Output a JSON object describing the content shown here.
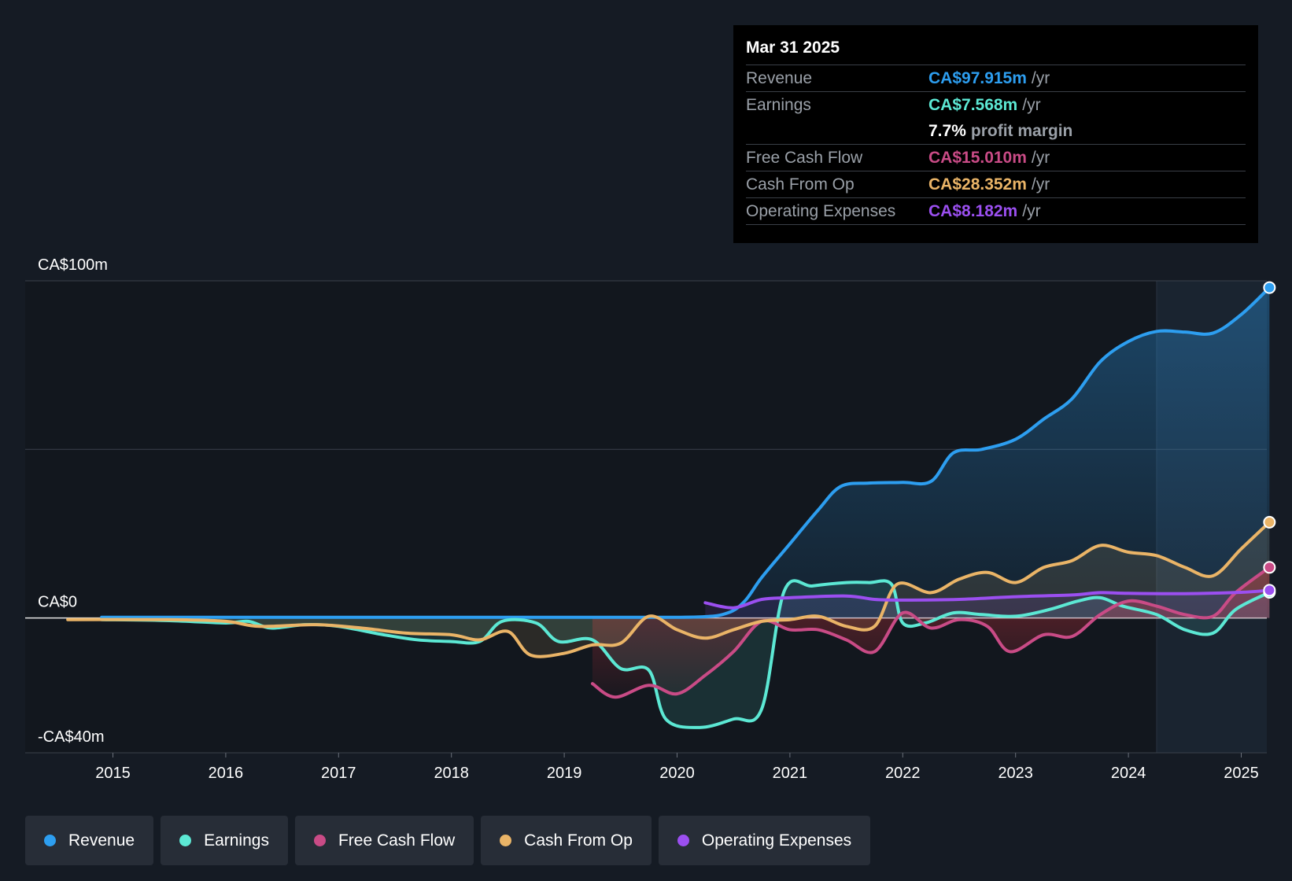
{
  "chart_data": {
    "type": "line",
    "ylim": [
      -40,
      100
    ],
    "xlim": [
      2014.6,
      2025.25
    ],
    "y_labels": [
      {
        "value": 100,
        "label": "CA$100m"
      },
      {
        "value": 0,
        "label": "CA$0"
      },
      {
        "value": -40,
        "label": "-CA$40m"
      }
    ],
    "gridlines": [
      100,
      50,
      0,
      -40
    ],
    "x_ticks": [
      "2015",
      "2016",
      "2017",
      "2018",
      "2019",
      "2020",
      "2021",
      "2022",
      "2023",
      "2024",
      "2025"
    ],
    "forecast_start": 2024.25,
    "series": [
      {
        "name": "Revenue",
        "color": "#2d9ef0",
        "fill": true,
        "points": [
          [
            2014.9,
            0.2
          ],
          [
            2015.5,
            0.2
          ],
          [
            2016.5,
            0.2
          ],
          [
            2017.5,
            0.2
          ],
          [
            2018.5,
            0.2
          ],
          [
            2019.5,
            0.2
          ],
          [
            2020.2,
            0.3
          ],
          [
            2020.45,
            1.5
          ],
          [
            2020.6,
            5
          ],
          [
            2020.75,
            12
          ],
          [
            2021.0,
            22
          ],
          [
            2021.25,
            32
          ],
          [
            2021.45,
            39
          ],
          [
            2021.7,
            40
          ],
          [
            2022.0,
            40.2
          ],
          [
            2022.25,
            40.5
          ],
          [
            2022.45,
            49
          ],
          [
            2022.7,
            50
          ],
          [
            2023.0,
            53
          ],
          [
            2023.25,
            59
          ],
          [
            2023.5,
            65
          ],
          [
            2023.75,
            76
          ],
          [
            2024.0,
            82
          ],
          [
            2024.25,
            85
          ],
          [
            2024.5,
            84.8
          ],
          [
            2024.75,
            84.5
          ],
          [
            2025.0,
            90
          ],
          [
            2025.25,
            98
          ]
        ]
      },
      {
        "name": "Earnings",
        "color": "#5ce8d4",
        "fill": true,
        "points": [
          [
            2014.9,
            -0.5
          ],
          [
            2015.5,
            -0.8
          ],
          [
            2016.0,
            -1.5
          ],
          [
            2016.2,
            -1.0
          ],
          [
            2016.4,
            -3.0
          ],
          [
            2016.7,
            -2.0
          ],
          [
            2017.0,
            -2.5
          ],
          [
            2017.4,
            -5.0
          ],
          [
            2017.7,
            -6.5
          ],
          [
            2018.0,
            -7.0
          ],
          [
            2018.25,
            -7.0
          ],
          [
            2018.45,
            -1.0
          ],
          [
            2018.75,
            -1.5
          ],
          [
            2018.95,
            -7.0
          ],
          [
            2019.25,
            -6.5
          ],
          [
            2019.5,
            -15.0
          ],
          [
            2019.75,
            -15.5
          ],
          [
            2019.9,
            -30.0
          ],
          [
            2020.2,
            -32.5
          ],
          [
            2020.5,
            -30.0
          ],
          [
            2020.75,
            -27.0
          ],
          [
            2020.95,
            8.0
          ],
          [
            2021.2,
            9.5
          ],
          [
            2021.5,
            10.5
          ],
          [
            2021.7,
            10.5
          ],
          [
            2021.9,
            10.0
          ],
          [
            2022.0,
            -1.5
          ],
          [
            2022.2,
            -1.5
          ],
          [
            2022.45,
            1.5
          ],
          [
            2022.7,
            1.0
          ],
          [
            2023.0,
            0.5
          ],
          [
            2023.3,
            2.5
          ],
          [
            2023.55,
            5.0
          ],
          [
            2023.75,
            6.0
          ],
          [
            2023.95,
            3.5
          ],
          [
            2024.25,
            1.0
          ],
          [
            2024.5,
            -3.5
          ],
          [
            2024.75,
            -4.5
          ],
          [
            2024.95,
            2.5
          ],
          [
            2025.25,
            7.6
          ]
        ]
      },
      {
        "name": "Free Cash Flow",
        "color": "#c94b86",
        "fill": true,
        "points": [
          [
            2019.25,
            -19.5
          ],
          [
            2019.45,
            -23.5
          ],
          [
            2019.75,
            -20.0
          ],
          [
            2020.0,
            -22.5
          ],
          [
            2020.25,
            -17.0
          ],
          [
            2020.5,
            -10.0
          ],
          [
            2020.75,
            -1.0
          ],
          [
            2021.0,
            -3.5
          ],
          [
            2021.25,
            -3.5
          ],
          [
            2021.5,
            -6.5
          ],
          [
            2021.75,
            -10.0
          ],
          [
            2022.0,
            1.5
          ],
          [
            2022.25,
            -3.0
          ],
          [
            2022.5,
            -0.5
          ],
          [
            2022.75,
            -2.5
          ],
          [
            2022.95,
            -10.0
          ],
          [
            2023.25,
            -5.0
          ],
          [
            2023.5,
            -5.5
          ],
          [
            2023.75,
            1.0
          ],
          [
            2024.0,
            5.0
          ],
          [
            2024.25,
            3.5
          ],
          [
            2024.5,
            1.0
          ],
          [
            2024.75,
            0.5
          ],
          [
            2024.95,
            7.5
          ],
          [
            2025.25,
            15.0
          ]
        ]
      },
      {
        "name": "Cash From Op",
        "color": "#eab467",
        "fill": true,
        "points": [
          [
            2014.6,
            -0.5
          ],
          [
            2015.5,
            -0.5
          ],
          [
            2016.0,
            -1.0
          ],
          [
            2016.3,
            -2.5
          ],
          [
            2016.8,
            -2.0
          ],
          [
            2017.2,
            -3.0
          ],
          [
            2017.6,
            -4.5
          ],
          [
            2018.0,
            -5.0
          ],
          [
            2018.25,
            -6.5
          ],
          [
            2018.5,
            -4.0
          ],
          [
            2018.7,
            -11.0
          ],
          [
            2019.0,
            -10.5
          ],
          [
            2019.25,
            -8.0
          ],
          [
            2019.5,
            -7.5
          ],
          [
            2019.75,
            0.5
          ],
          [
            2020.0,
            -3.5
          ],
          [
            2020.25,
            -6.0
          ],
          [
            2020.5,
            -3.5
          ],
          [
            2020.75,
            -1.0
          ],
          [
            2021.0,
            -0.5
          ],
          [
            2021.25,
            0.5
          ],
          [
            2021.5,
            -2.5
          ],
          [
            2021.75,
            -2.5
          ],
          [
            2021.95,
            10.0
          ],
          [
            2022.25,
            7.5
          ],
          [
            2022.5,
            11.5
          ],
          [
            2022.75,
            13.5
          ],
          [
            2023.0,
            10.5
          ],
          [
            2023.25,
            15.0
          ],
          [
            2023.5,
            17.0
          ],
          [
            2023.75,
            21.5
          ],
          [
            2024.0,
            19.5
          ],
          [
            2024.25,
            18.5
          ],
          [
            2024.5,
            15.0
          ],
          [
            2024.75,
            12.5
          ],
          [
            2025.0,
            20.5
          ],
          [
            2025.25,
            28.4
          ]
        ]
      },
      {
        "name": "Operating Expenses",
        "color": "#9b4ff0",
        "fill": true,
        "points": [
          [
            2020.25,
            4.5
          ],
          [
            2020.5,
            3.0
          ],
          [
            2020.75,
            5.5
          ],
          [
            2021.0,
            6.0
          ],
          [
            2021.5,
            6.5
          ],
          [
            2021.75,
            5.5
          ],
          [
            2022.0,
            5.3
          ],
          [
            2022.5,
            5.5
          ],
          [
            2023.0,
            6.3
          ],
          [
            2023.5,
            6.8
          ],
          [
            2023.75,
            7.5
          ],
          [
            2024.0,
            7.3
          ],
          [
            2024.5,
            7.2
          ],
          [
            2025.0,
            7.6
          ],
          [
            2025.25,
            8.2
          ]
        ]
      }
    ]
  },
  "tooltip": {
    "date": "Mar 31 2025",
    "rows": [
      {
        "label": "Revenue",
        "value": "CA$97.915m",
        "unit": "/yr",
        "color": "#2d9ef0"
      },
      {
        "label": "Earnings",
        "value": "CA$7.568m",
        "unit": "/yr",
        "color": "#5ce8d4"
      },
      {
        "label": "Free Cash Flow",
        "value": "CA$15.010m",
        "unit": "/yr",
        "color": "#c94b86"
      },
      {
        "label": "Cash From Op",
        "value": "CA$28.352m",
        "unit": "/yr",
        "color": "#eab467"
      },
      {
        "label": "Operating Expenses",
        "value": "CA$8.182m",
        "unit": "/yr",
        "color": "#9b4ff0"
      }
    ],
    "profit_margin_value": "7.7%",
    "profit_margin_label": "profit margin"
  },
  "legend": [
    {
      "label": "Revenue",
      "color": "#2d9ef0"
    },
    {
      "label": "Earnings",
      "color": "#5ce8d4"
    },
    {
      "label": "Free Cash Flow",
      "color": "#c94b86"
    },
    {
      "label": "Cash From Op",
      "color": "#eab467"
    },
    {
      "label": "Operating Expenses",
      "color": "#9b4ff0"
    }
  ]
}
